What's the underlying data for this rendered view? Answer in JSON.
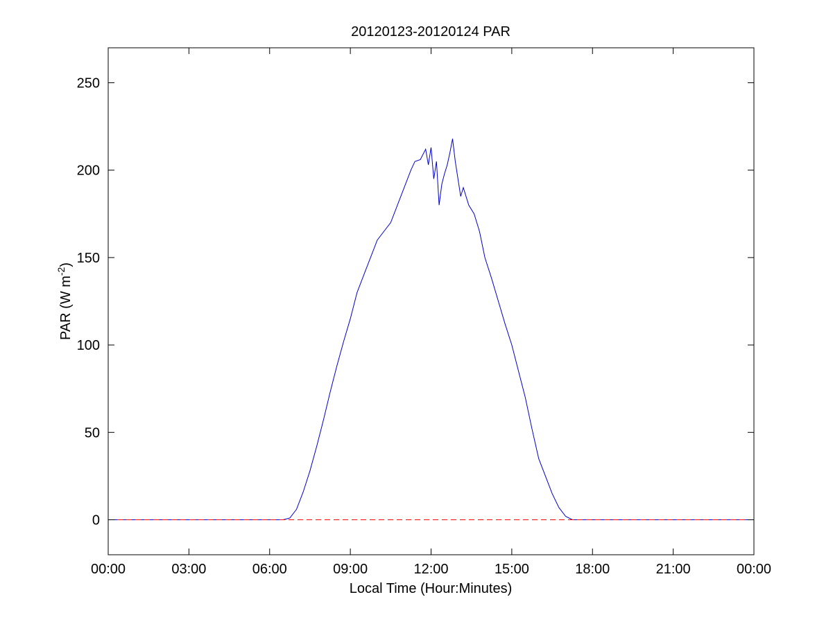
{
  "chart_data": {
    "type": "line",
    "title": "20120123-20120124 PAR",
    "xlabel": "Local Time (Hour:Minutes)",
    "ylabel": {
      "main": "PAR (W m",
      "superscript": "-2",
      "close": ")"
    },
    "xlim": [
      0,
      24
    ],
    "ylim": [
      -20,
      270
    ],
    "x_ticks": [
      0,
      3,
      6,
      9,
      12,
      15,
      18,
      21,
      24
    ],
    "x_tick_labels": [
      "00:00",
      "03:00",
      "06:00",
      "09:00",
      "12:00",
      "15:00",
      "18:00",
      "21:00",
      "00:00"
    ],
    "y_ticks": [
      0,
      50,
      100,
      150,
      200,
      250
    ],
    "y_tick_labels": [
      "0",
      "50",
      "100",
      "150",
      "200",
      "250"
    ],
    "grid": false,
    "legend": "none",
    "series": [
      {
        "color": "#0000cc",
        "style": "solid",
        "x": [
          0,
          6.5,
          6.75,
          7.0,
          7.25,
          7.5,
          7.75,
          8.0,
          8.25,
          8.5,
          8.75,
          9.0,
          9.25,
          9.5,
          9.75,
          10.0,
          10.25,
          10.5,
          10.75,
          11.0,
          11.25,
          11.4,
          11.6,
          11.8,
          11.9,
          12.0,
          12.1,
          12.2,
          12.3,
          12.4,
          12.5,
          12.6,
          12.7,
          12.8,
          12.9,
          13.0,
          13.1,
          13.2,
          13.4,
          13.6,
          13.8,
          14.0,
          14.25,
          14.5,
          14.75,
          15.0,
          15.25,
          15.5,
          15.75,
          16.0,
          16.25,
          16.5,
          16.75,
          17.0,
          17.25,
          17.5,
          17.75,
          24
        ],
        "y": [
          0,
          0,
          1,
          6,
          16,
          28,
          42,
          57,
          73,
          88,
          102,
          115,
          130,
          140,
          150,
          160,
          165,
          170,
          180,
          190,
          200,
          205,
          206,
          212,
          203,
          213,
          195,
          205,
          180,
          192,
          198,
          203,
          210,
          218,
          205,
          195,
          185,
          190,
          180,
          175,
          165,
          150,
          138,
          125,
          112,
          100,
          85,
          70,
          52,
          35,
          25,
          15,
          7,
          2,
          0,
          0,
          0,
          0
        ]
      },
      {
        "color": "#ff0000",
        "style": "dashed",
        "x": [
          0,
          24
        ],
        "y": [
          0,
          0
        ]
      }
    ]
  }
}
